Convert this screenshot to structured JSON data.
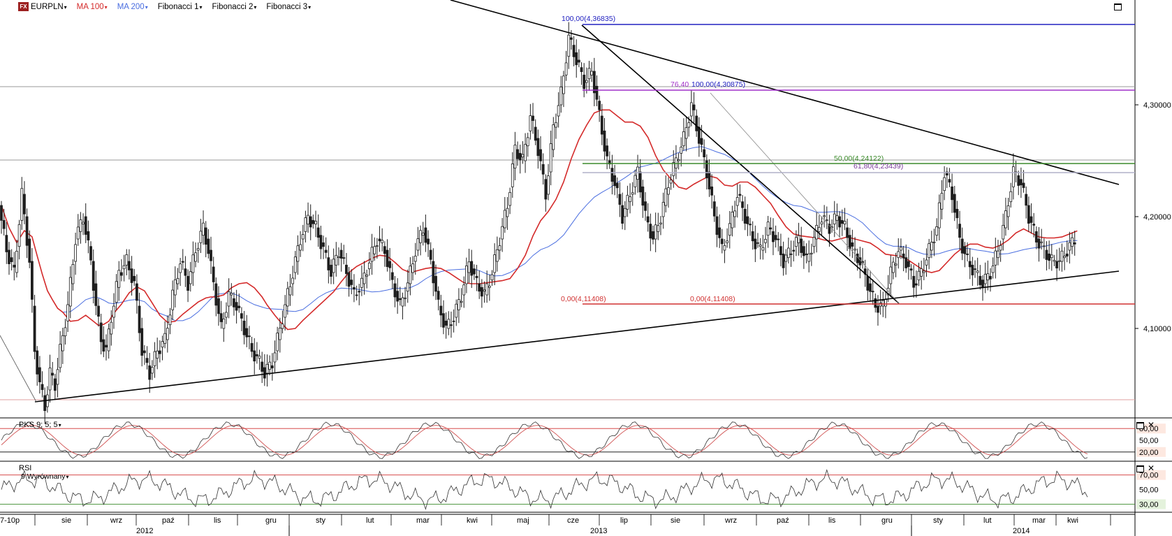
{
  "toolbar": {
    "logo": "FX",
    "symbol": "EURPLN",
    "ma100": "MA 100",
    "ma200": "MA 200",
    "fib1": "Fibonacci 1",
    "fib2": "Fibonacci 2",
    "fib3": "Fibonacci 3",
    "caret": "▾"
  },
  "colors": {
    "ma100": "#d42a2a",
    "ma200": "#4a6ee0",
    "candle": "#1e1e1e",
    "fib_top": "#2020c0",
    "fib_mid": "#a030c8",
    "fib_green": "#3a8a2a",
    "fib_zero": "#d03030",
    "grid": "#cfcfcf"
  },
  "price_axis": {
    "labels": [
      "4,30000",
      "4,20000",
      "4,10000"
    ],
    "values": [
      4.3,
      4.2,
      4.1
    ]
  },
  "time_axis": {
    "months": [
      "p",
      "sie",
      "wrz",
      "paź",
      "lis",
      "gru",
      "sty",
      "lut",
      "mar",
      "kwi",
      "maj",
      "cze",
      "lip",
      "sie",
      "wrz",
      "paź",
      "lis",
      "gru",
      "sty",
      "lut",
      "mar",
      "kwi"
    ],
    "left_fragment": "7-10",
    "years": [
      "2012",
      "2013",
      "2014"
    ]
  },
  "fib_labels": {
    "a100": "100,00(4,36835)",
    "b76": "76,40",
    "b100": "100,00(4,30875)",
    "g50": "50,00(4,24122)",
    "g618": "61,80(4,23439)",
    "z1": "0,00(4,11408)",
    "z2": "0,00(4,11408)"
  },
  "pks": {
    "name": "PKS 9; 5; 5",
    "levels": [
      "80,00",
      "50,00",
      "20,00"
    ]
  },
  "rsi": {
    "name": "RSI",
    "sub": "9 Wyrównany",
    "levels": [
      "70,00",
      "50,00",
      "30,00"
    ]
  },
  "chart_data": {
    "type": "candlestick",
    "symbol": "EURPLN",
    "x_range": [
      "2012-07",
      "2014-04"
    ],
    "y_range": [
      4.02,
      4.38
    ],
    "close_series_approx": [
      [
        0,
        4.21
      ],
      [
        3,
        4.17
      ],
      [
        6,
        4.15
      ],
      [
        9,
        4.22
      ],
      [
        12,
        4.16
      ],
      [
        14,
        4.08
      ],
      [
        16,
        4.05
      ],
      [
        18,
        4.03
      ],
      [
        20,
        4.06
      ],
      [
        22,
        4.05
      ],
      [
        24,
        4.08
      ],
      [
        27,
        4.12
      ],
      [
        30,
        4.18
      ],
      [
        33,
        4.2
      ],
      [
        36,
        4.16
      ],
      [
        38,
        4.12
      ],
      [
        40,
        4.09
      ],
      [
        42,
        4.08
      ],
      [
        44,
        4.11
      ],
      [
        47,
        4.15
      ],
      [
        50,
        4.16
      ],
      [
        53,
        4.14
      ],
      [
        56,
        4.08
      ],
      [
        59,
        4.06
      ],
      [
        62,
        4.08
      ],
      [
        65,
        4.09
      ],
      [
        68,
        4.13
      ],
      [
        71,
        4.16
      ],
      [
        74,
        4.14
      ],
      [
        77,
        4.17
      ],
      [
        80,
        4.19
      ],
      [
        82,
        4.17
      ],
      [
        84,
        4.14
      ],
      [
        87,
        4.1
      ],
      [
        90,
        4.13
      ],
      [
        93,
        4.12
      ],
      [
        96,
        4.1
      ],
      [
        99,
        4.08
      ],
      [
        102,
        4.07
      ],
      [
        104,
        4.06
      ],
      [
        107,
        4.07
      ],
      [
        110,
        4.1
      ],
      [
        112,
        4.12
      ],
      [
        115,
        4.15
      ],
      [
        118,
        4.18
      ],
      [
        121,
        4.2
      ],
      [
        124,
        4.19
      ],
      [
        127,
        4.17
      ],
      [
        130,
        4.15
      ],
      [
        133,
        4.17
      ],
      [
        136,
        4.15
      ],
      [
        139,
        4.13
      ],
      [
        142,
        4.14
      ],
      [
        145,
        4.16
      ],
      [
        148,
        4.18
      ],
      [
        151,
        4.17
      ],
      [
        154,
        4.14
      ],
      [
        157,
        4.12
      ],
      [
        160,
        4.14
      ],
      [
        163,
        4.17
      ],
      [
        166,
        4.19
      ],
      [
        169,
        4.16
      ],
      [
        172,
        4.12
      ],
      [
        175,
        4.1
      ],
      [
        178,
        4.11
      ],
      [
        181,
        4.13
      ],
      [
        184,
        4.16
      ],
      [
        187,
        4.14
      ],
      [
        190,
        4.13
      ],
      [
        193,
        4.15
      ],
      [
        196,
        4.18
      ],
      [
        199,
        4.21
      ],
      [
        202,
        4.26
      ],
      [
        205,
        4.25
      ],
      [
        208,
        4.29
      ],
      [
        211,
        4.26
      ],
      [
        214,
        4.22
      ],
      [
        217,
        4.28
      ],
      [
        220,
        4.31
      ],
      [
        223,
        4.36
      ],
      [
        226,
        4.34
      ],
      [
        229,
        4.32
      ],
      [
        232,
        4.33
      ],
      [
        235,
        4.29
      ],
      [
        238,
        4.25
      ],
      [
        241,
        4.23
      ],
      [
        244,
        4.2
      ],
      [
        247,
        4.22
      ],
      [
        250,
        4.24
      ],
      [
        253,
        4.2
      ],
      [
        256,
        4.18
      ],
      [
        259,
        4.2
      ],
      [
        262,
        4.23
      ],
      [
        265,
        4.25
      ],
      [
        268,
        4.27
      ],
      [
        271,
        4.3
      ],
      [
        274,
        4.27
      ],
      [
        277,
        4.24
      ],
      [
        280,
        4.2
      ],
      [
        283,
        4.17
      ],
      [
        286,
        4.19
      ],
      [
        289,
        4.22
      ],
      [
        292,
        4.2
      ],
      [
        295,
        4.18
      ],
      [
        298,
        4.17
      ],
      [
        301,
        4.19
      ],
      [
        304,
        4.18
      ],
      [
        307,
        4.16
      ],
      [
        310,
        4.17
      ],
      [
        313,
        4.18
      ],
      [
        316,
        4.16
      ],
      [
        319,
        4.18
      ],
      [
        322,
        4.2
      ],
      [
        325,
        4.19
      ],
      [
        328,
        4.2
      ],
      [
        331,
        4.19
      ],
      [
        334,
        4.17
      ],
      [
        337,
        4.16
      ],
      [
        340,
        4.14
      ],
      [
        343,
        4.12
      ],
      [
        346,
        4.12
      ],
      [
        349,
        4.15
      ],
      [
        352,
        4.17
      ],
      [
        355,
        4.16
      ],
      [
        358,
        4.14
      ],
      [
        361,
        4.15
      ],
      [
        364,
        4.17
      ],
      [
        367,
        4.19
      ],
      [
        370,
        4.24
      ],
      [
        373,
        4.22
      ],
      [
        376,
        4.18
      ],
      [
        379,
        4.16
      ],
      [
        382,
        4.15
      ],
      [
        385,
        4.14
      ],
      [
        388,
        4.15
      ],
      [
        391,
        4.17
      ],
      [
        394,
        4.2
      ],
      [
        397,
        4.24
      ],
      [
        400,
        4.23
      ],
      [
        403,
        4.2
      ],
      [
        406,
        4.18
      ],
      [
        409,
        4.17
      ],
      [
        412,
        4.16
      ],
      [
        415,
        4.16
      ],
      [
        418,
        4.17
      ],
      [
        421,
        4.18
      ]
    ],
    "trendlines": "descending from top-left through 4.36835 high to 2014; ascending support from 2012 low",
    "fibonacci": [
      {
        "label": "100,00(4,36835)",
        "level": 4.36835
      },
      {
        "label": "100,00(4,30875)",
        "level": 4.30875
      },
      {
        "label": "50,00(4,24122)",
        "level": 4.24122
      },
      {
        "label": "61,80(4,23439)",
        "level": 4.23439
      },
      {
        "label": "0,00(4,11408)",
        "level": 4.11408
      }
    ],
    "indicators": [
      "MA 100",
      "MA 200",
      "PKS 9; 5; 5",
      "RSI 9 Wyrównany"
    ]
  }
}
